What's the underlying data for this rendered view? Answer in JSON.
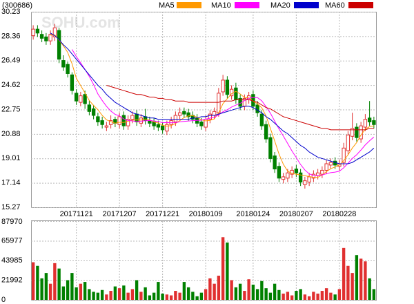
{
  "chart_data": [
    {
      "type": "candlestick",
      "title": "(300686)",
      "watermark": "SOHU.com",
      "up_color": "#e03030",
      "down_color": "#008000",
      "categories": [
        null,
        null,
        null,
        null,
        null,
        null,
        null,
        null,
        null,
        null,
        "20171121",
        null,
        null,
        null,
        null,
        null,
        null,
        null,
        null,
        null,
        "20171207",
        null,
        null,
        null,
        null,
        null,
        null,
        null,
        null,
        null,
        "20171221",
        null,
        null,
        null,
        null,
        null,
        null,
        null,
        null,
        null,
        "20180109",
        null,
        null,
        null,
        null,
        null,
        null,
        null,
        null,
        null,
        null,
        "20180124",
        null,
        null,
        null,
        null,
        null,
        null,
        null,
        null,
        null,
        "20180207",
        null,
        null,
        null,
        null,
        null,
        null,
        null,
        null,
        null,
        "20180228",
        null,
        null,
        null,
        null,
        null,
        null,
        null,
        null
      ],
      "open": [
        28.4,
        28.9,
        28.5,
        28.3,
        28.0,
        28.3,
        28.8,
        26.5,
        26.2,
        25.4,
        24.0,
        23.3,
        23.9,
        23.1,
        22.8,
        22.2,
        21.9,
        21.4,
        21.6,
        22.0,
        21.6,
        22.3,
        21.5,
        22.0,
        22.4,
        21.7,
        22.2,
        21.9,
        21.8,
        21.6,
        21.5,
        21.1,
        21.6,
        21.8,
        22.3,
        22.6,
        22.5,
        22.3,
        22.1,
        21.8,
        21.4,
        22.0,
        22.3,
        22.5,
        24.1,
        25.0,
        23.8,
        24.4,
        23.6,
        23.0,
        23.5,
        23.9,
        23.1,
        22.4,
        21.6,
        20.6,
        19.2,
        18.4,
        17.4,
        17.5,
        17.8,
        18.2,
        17.9,
        17.0,
        17.2,
        17.5,
        17.7,
        17.8,
        18.1,
        18.5,
        18.8,
        18.4,
        18.7,
        19.6,
        20.7,
        21.4,
        20.5,
        21.4,
        22.1,
        21.9
      ],
      "high": [
        29.2,
        29.2,
        28.8,
        28.6,
        28.8,
        29.3,
        29.0,
        26.9,
        26.4,
        25.6,
        24.3,
        24.1,
        24.2,
        23.4,
        23.1,
        22.5,
        22.2,
        21.8,
        22.3,
        22.2,
        22.5,
        22.6,
        22.3,
        22.6,
        22.7,
        22.4,
        22.8,
        22.2,
        22.1,
        21.9,
        21.8,
        21.9,
        22.2,
        22.6,
        22.9,
        22.9,
        22.8,
        22.6,
        22.4,
        22.1,
        22.3,
        22.7,
        22.9,
        24.4,
        25.4,
        25.3,
        24.6,
        24.8,
        23.9,
        23.9,
        24.1,
        24.2,
        23.4,
        22.7,
        21.9,
        20.9,
        19.5,
        18.7,
        17.9,
        18.2,
        18.4,
        18.5,
        18.2,
        17.6,
        17.9,
        18.1,
        18.2,
        18.4,
        18.9,
        19.0,
        19.1,
        18.9,
        20.2,
        21.1,
        22.5,
        21.7,
        21.8,
        22.4,
        23.4,
        22.2
      ],
      "low": [
        28.1,
        28.3,
        27.9,
        27.7,
        27.7,
        28.0,
        26.3,
        25.7,
        25.2,
        23.9,
        23.1,
        23.0,
        22.8,
        22.3,
        22.0,
        21.5,
        21.3,
        21.1,
        21.3,
        21.4,
        21.3,
        21.2,
        21.2,
        21.7,
        21.5,
        21.4,
        21.6,
        21.4,
        21.2,
        21.1,
        20.9,
        20.8,
        21.3,
        21.5,
        22.0,
        22.1,
        21.9,
        21.7,
        21.4,
        21.2,
        21.1,
        21.7,
        22.0,
        22.2,
        23.8,
        23.6,
        23.5,
        23.2,
        22.7,
        22.7,
        23.2,
        22.7,
        22.2,
        21.2,
        20.2,
        18.7,
        17.9,
        17.2,
        17.1,
        17.2,
        17.5,
        17.6,
        16.9,
        16.7,
        16.9,
        17.2,
        17.4,
        17.5,
        17.8,
        18.2,
        18.2,
        18.1,
        18.4,
        19.3,
        20.4,
        20.3,
        20.2,
        21.1,
        21.5,
        21.3
      ],
      "close": [
        28.9,
        28.6,
        28.2,
        28.0,
        28.5,
        29.0,
        26.6,
        26.0,
        25.5,
        24.2,
        23.4,
        23.8,
        23.2,
        22.6,
        22.3,
        21.8,
        21.6,
        21.5,
        21.9,
        21.7,
        22.2,
        21.5,
        22.0,
        22.3,
        21.8,
        22.1,
        21.9,
        21.7,
        21.5,
        21.4,
        21.2,
        21.6,
        21.9,
        22.3,
        22.5,
        22.4,
        22.2,
        22.0,
        21.7,
        21.5,
        22.0,
        22.4,
        22.6,
        24.0,
        25.0,
        23.9,
        24.3,
        23.5,
        23.0,
        23.6,
        23.8,
        23.0,
        22.5,
        21.5,
        20.5,
        19.0,
        18.2,
        17.5,
        17.6,
        17.9,
        18.1,
        17.9,
        17.2,
        17.3,
        17.6,
        17.8,
        17.9,
        18.1,
        18.6,
        18.7,
        18.5,
        18.6,
        19.8,
        20.8,
        21.3,
        20.6,
        21.5,
        22.0,
        21.8,
        21.6
      ],
      "series": [
        {
          "name": "MA5",
          "color": "#ff9900",
          "values": [
            null,
            null,
            null,
            null,
            28.44,
            28.46,
            28.06,
            27.62,
            27.12,
            26.26,
            25.14,
            24.58,
            24.02,
            23.44,
            23.06,
            22.74,
            22.3,
            21.96,
            21.82,
            21.7,
            21.78,
            21.76,
            21.86,
            21.94,
            21.96,
            21.94,
            22.02,
            21.96,
            21.8,
            21.72,
            21.54,
            21.48,
            21.52,
            21.68,
            21.9,
            22.14,
            22.26,
            22.28,
            22.16,
            21.96,
            21.88,
            21.92,
            22.04,
            22.5,
            23.2,
            23.58,
            23.96,
            24.14,
            23.94,
            23.66,
            23.64,
            23.38,
            23.18,
            22.88,
            22.26,
            21.3,
            20.34,
            19.34,
            18.56,
            18.04,
            17.86,
            17.8,
            17.74,
            17.68,
            17.62,
            17.56,
            17.56,
            17.74,
            18.0,
            18.22,
            18.36,
            18.5,
            18.84,
            19.28,
            19.8,
            20.22,
            20.8,
            21.24,
            21.44,
            21.5
          ]
        },
        {
          "name": "MA10",
          "color": "#ff00ff",
          "values": [
            null,
            null,
            null,
            null,
            null,
            null,
            null,
            null,
            null,
            27.35,
            26.8,
            26.32,
            25.82,
            25.28,
            24.66,
            23.94,
            23.44,
            22.99,
            22.63,
            22.38,
            22.26,
            22.03,
            21.91,
            21.88,
            21.83,
            21.86,
            21.89,
            21.91,
            21.87,
            21.84,
            21.74,
            21.75,
            21.74,
            21.74,
            21.81,
            21.84,
            21.87,
            21.9,
            21.92,
            21.93,
            22.01,
            22.09,
            22.16,
            22.33,
            22.58,
            22.73,
            22.94,
            23.09,
            23.22,
            23.43,
            23.61,
            23.67,
            23.66,
            23.41,
            22.96,
            22.47,
            21.86,
            21.26,
            20.72,
            20.15,
            19.58,
            19.07,
            18.54,
            18.12,
            17.83,
            17.71,
            17.68,
            17.74,
            17.84,
            17.92,
            17.96,
            18.03,
            18.29,
            18.64,
            19.01,
            19.29,
            19.65,
            20.04,
            20.36,
            20.65
          ]
        },
        {
          "name": "MA20",
          "color": "#0000cc",
          "values": [
            null,
            null,
            null,
            null,
            28.6,
            28.4,
            28.1,
            27.7,
            27.4,
            27.0,
            26.6,
            26.2,
            25.8,
            25.4,
            25.0,
            24.6,
            24.3,
            23.9,
            23.6,
            23.3,
            23.1,
            22.9,
            22.7,
            22.5,
            22.4,
            22.3,
            22.2,
            22.1,
            22.1,
            22.0,
            22.0,
            22.0,
            22.0,
            22.0,
            22.0,
            22.0,
            22.0,
            22.1,
            22.1,
            22.2,
            22.2,
            22.3,
            22.3,
            22.4,
            22.5,
            22.6,
            22.7,
            22.8,
            22.9,
            23.0,
            23.0,
            22.9,
            22.7,
            22.5,
            22.2,
            22.0,
            21.7,
            21.4,
            21.1,
            20.9,
            20.6,
            20.3,
            20.0,
            19.8,
            19.5,
            19.3,
            19.1,
            19.0,
            18.9,
            18.8,
            18.7,
            18.6,
            18.6,
            18.6,
            18.7,
            18.9,
            19.1,
            19.3,
            19.5,
            19.8
          ]
        },
        {
          "name": "MA60",
          "color": "#cc0000",
          "values": [
            null,
            null,
            null,
            null,
            null,
            null,
            null,
            null,
            null,
            null,
            null,
            null,
            null,
            null,
            null,
            null,
            null,
            24.6,
            24.5,
            24.4,
            24.3,
            24.2,
            24.1,
            24.0,
            23.9,
            23.9,
            23.8,
            23.7,
            23.7,
            23.6,
            23.6,
            23.5,
            23.5,
            23.4,
            23.4,
            23.4,
            23.3,
            23.3,
            23.3,
            23.3,
            23.3,
            23.3,
            23.3,
            23.3,
            23.4,
            23.4,
            23.4,
            23.5,
            23.5,
            23.5,
            23.5,
            23.4,
            23.3,
            23.1,
            22.9,
            22.8,
            22.6,
            22.4,
            22.2,
            22.1,
            22.0,
            21.9,
            21.8,
            21.7,
            21.6,
            21.5,
            21.4,
            21.3,
            21.3,
            21.2,
            21.2,
            21.2,
            21.2,
            21.2,
            21.2,
            21.2,
            21.2,
            21.2,
            21.3,
            21.3
          ]
        }
      ],
      "ylim": [
        15.27,
        30.23
      ],
      "yticks": [
        15.27,
        17.14,
        19.01,
        20.88,
        22.75,
        24.62,
        26.49,
        28.36,
        30.23
      ],
      "grid": true
    },
    {
      "type": "volume",
      "values": [
        42000,
        38000,
        24000,
        30000,
        18000,
        41000,
        35000,
        15000,
        22000,
        30000,
        14000,
        18000,
        20000,
        12000,
        9000,
        8000,
        11000,
        6000,
        10000,
        15000,
        13000,
        16000,
        8000,
        12000,
        22000,
        9000,
        14000,
        5000,
        8000,
        20000,
        7000,
        6000,
        5000,
        10000,
        8000,
        20000,
        14000,
        9000,
        4000,
        8000,
        12000,
        24000,
        18000,
        27000,
        70000,
        64000,
        22000,
        14000,
        18000,
        10000,
        23000,
        17000,
        12000,
        21000,
        13000,
        8000,
        18000,
        11000,
        7000,
        9000,
        5000,
        10000,
        12000,
        6000,
        4000,
        9000,
        7000,
        10000,
        13000,
        8000,
        6000,
        12000,
        58000,
        38000,
        30000,
        50000,
        46000,
        43000,
        24000,
        12000
      ],
      "ylim": [
        0,
        87970
      ],
      "yticks": [
        0,
        21992,
        43985,
        65977,
        87970
      ],
      "grid": true
    }
  ]
}
